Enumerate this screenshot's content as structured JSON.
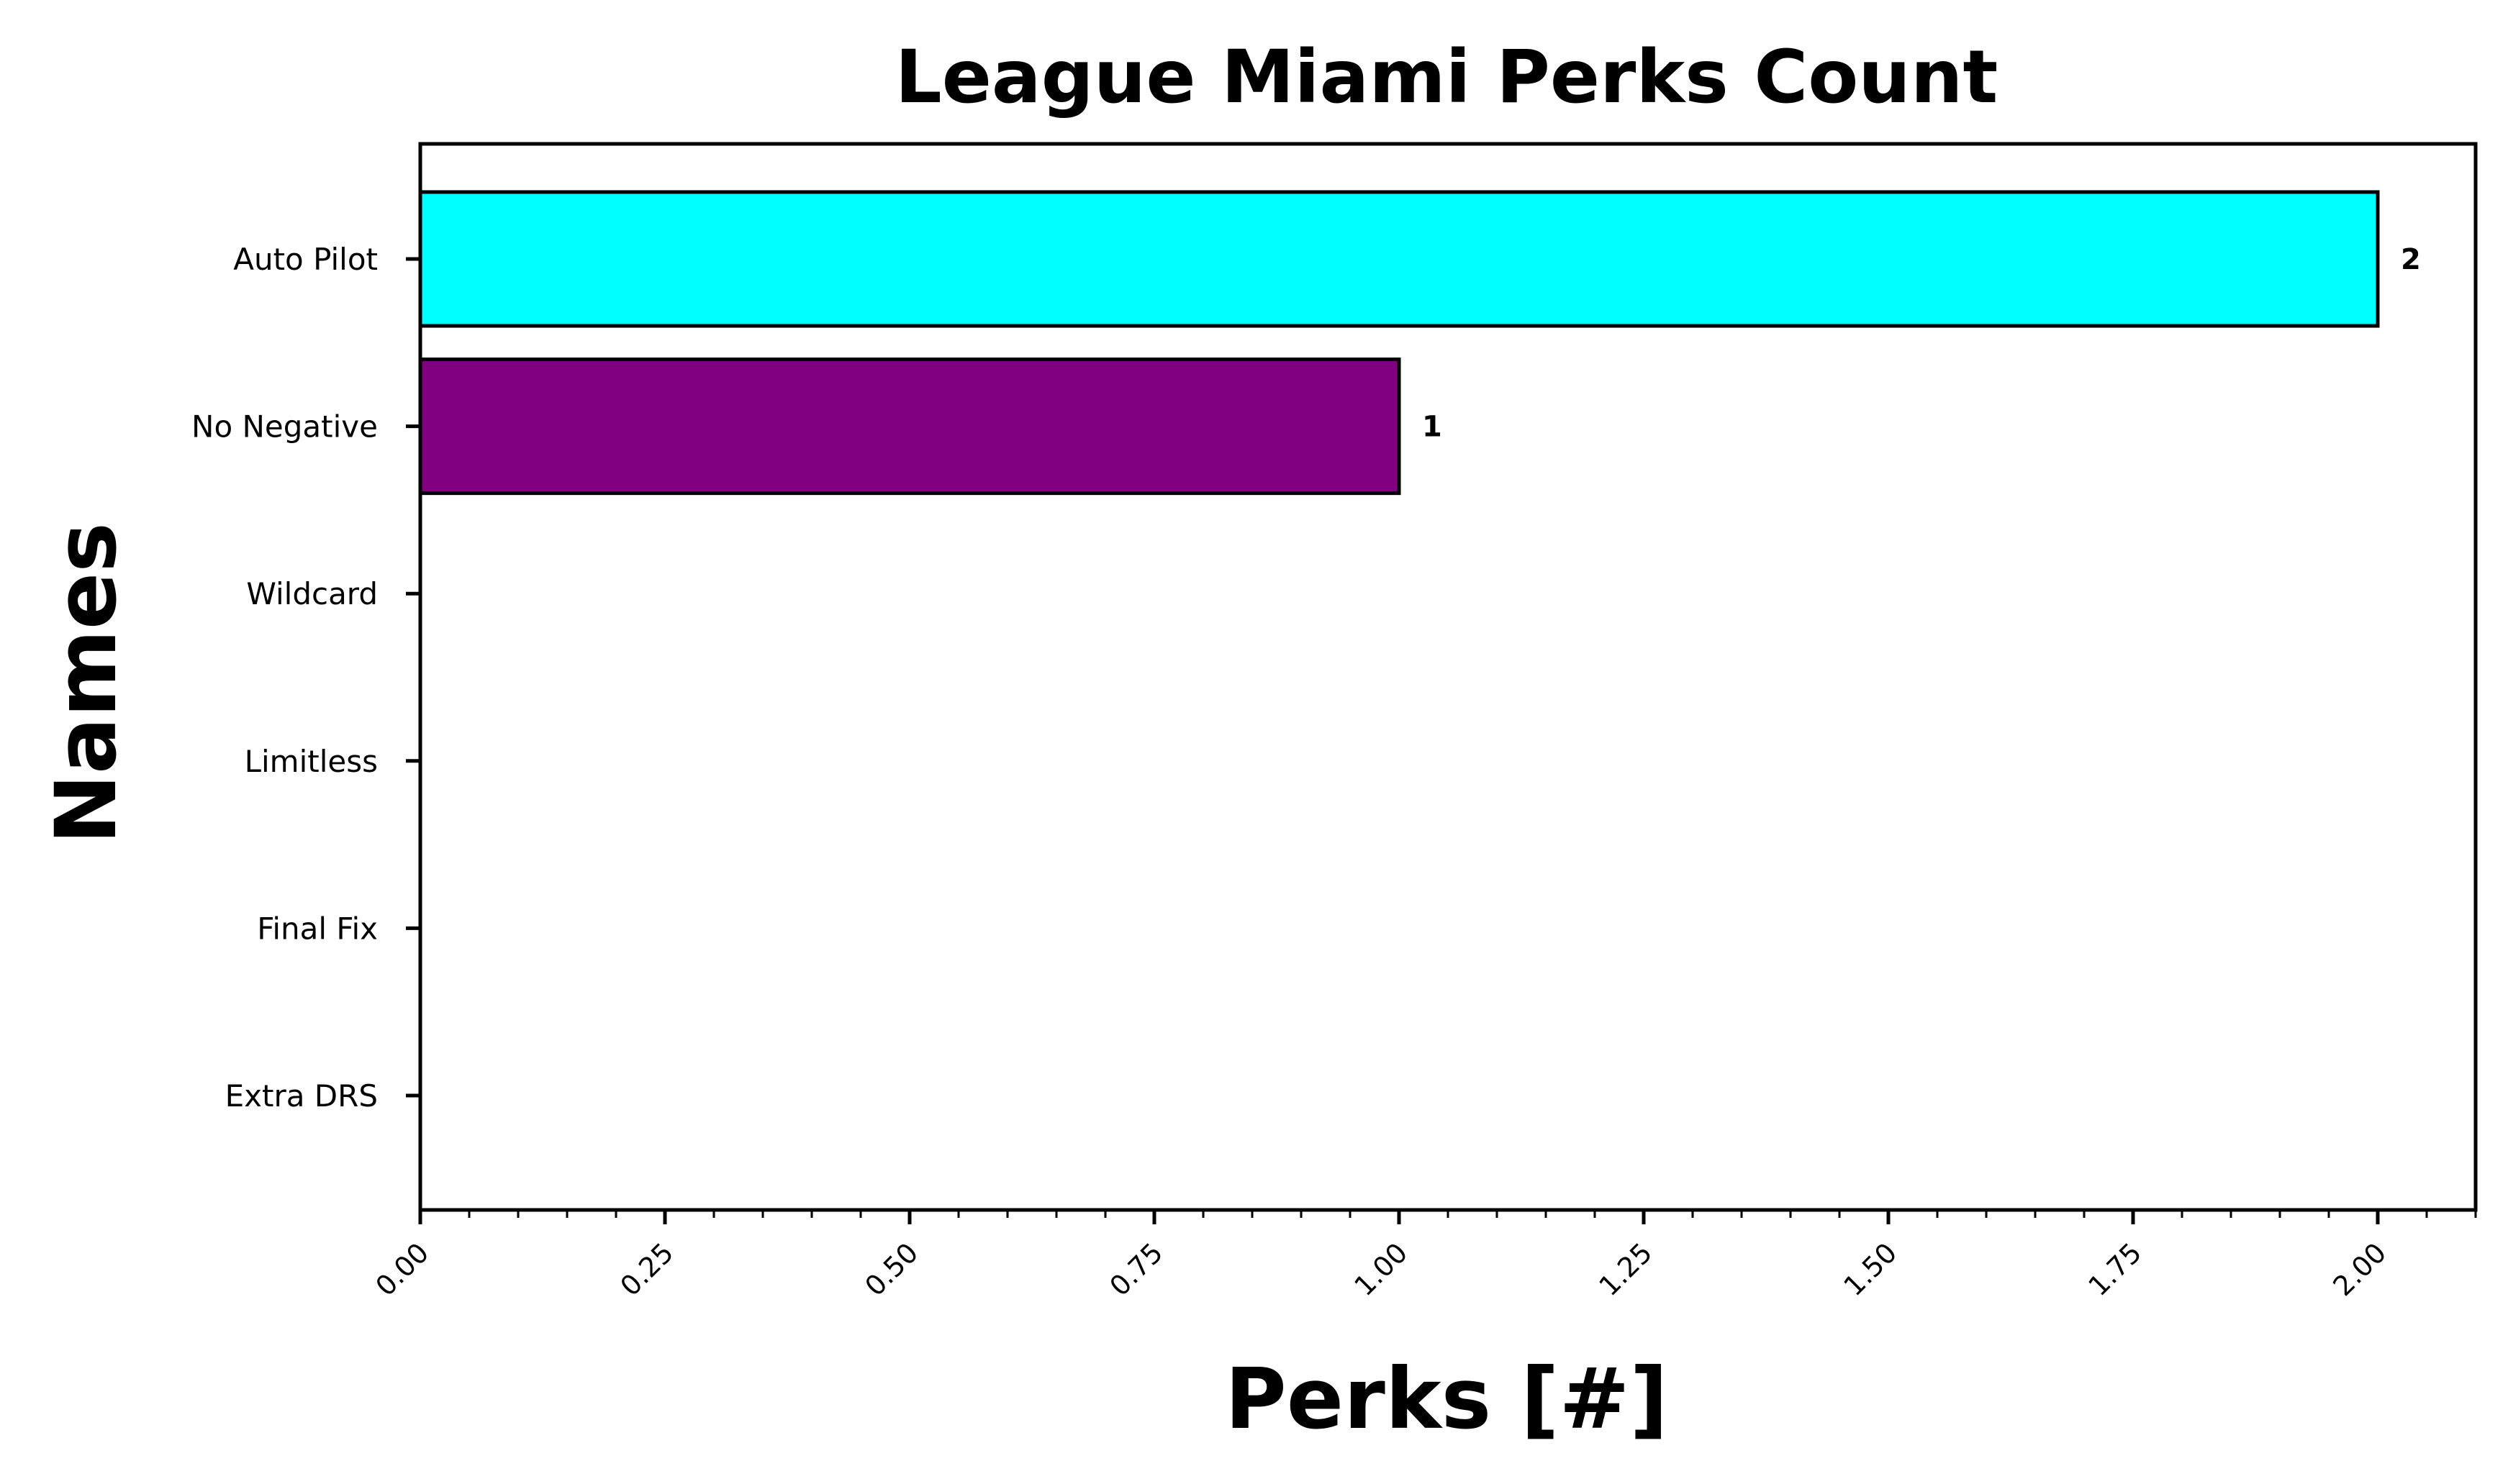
{
  "chart_data": {
    "type": "bar",
    "orientation": "horizontal",
    "title": "League Miami Perks Count",
    "xlabel": "Perks [#]",
    "ylabel": "Names",
    "categories": [
      "Auto Pilot",
      "No Negative",
      "Wildcard",
      "Limitless",
      "Final Fix",
      "Extra DRS"
    ],
    "values": [
      2,
      1,
      0,
      0,
      0,
      0
    ],
    "colors": [
      "#00ffff",
      "#800080",
      "#000000",
      "#000000",
      "#000000",
      "#000000"
    ],
    "data_labels": [
      "2",
      "1",
      "",
      "",
      "",
      ""
    ],
    "xlim": [
      0,
      2.1
    ],
    "xticks": [
      "0.00",
      "0.25",
      "0.50",
      "0.75",
      "1.00",
      "1.25",
      "1.50",
      "1.75",
      "2.00"
    ],
    "grid": false
  }
}
